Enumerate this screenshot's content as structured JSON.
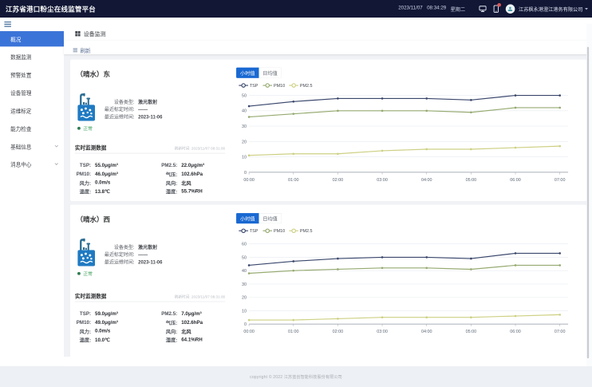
{
  "header": {
    "title": "江苏省港口粉尘在线监管平台",
    "date": "2023/11/07",
    "time": "08:34:29",
    "weekday": "星期二",
    "notification_badge": true,
    "company": "江苏枫永港澄江港务有限公司"
  },
  "sidebar": {
    "items": [
      {
        "key": "overview",
        "label": "概况",
        "active": true,
        "expandable": false
      },
      {
        "key": "data-monitor",
        "label": "数据监测",
        "active": false,
        "expandable": false
      },
      {
        "key": "alert-handle",
        "label": "预警处置",
        "active": false,
        "expandable": false
      },
      {
        "key": "device-mgmt",
        "label": "设备管理",
        "active": false,
        "expandable": false
      },
      {
        "key": "ops-calib",
        "label": "运维标定",
        "active": false,
        "expandable": false
      },
      {
        "key": "ability-check",
        "label": "能力检查",
        "active": false,
        "expandable": false
      },
      {
        "key": "basic-info",
        "label": "基础信息",
        "active": false,
        "expandable": true
      },
      {
        "key": "msg-center",
        "label": "消息中心",
        "active": false,
        "expandable": true
      }
    ]
  },
  "navbar": {
    "breadcrumb": "设备监测"
  },
  "tagbar": {
    "label": "刷新"
  },
  "stations": [
    {
      "name": "（晴水）东",
      "device_type_label": "设备类型:",
      "device_type": "激光散射",
      "calibration_label": "最近标定时间:",
      "calibration_time": "——",
      "maintenance_label": "最近运维时间:",
      "maintenance_time": "2023-11-06",
      "status": "正常",
      "realtime_title": "实时监测数据",
      "refresh_label": "刷新时间: ",
      "refresh_time": "2023/11/07 08:31:00",
      "readings": [
        {
          "label": "TSP:",
          "value": "55.0μg/m³"
        },
        {
          "label": "PM2.5:",
          "value": "22.0μg/m³"
        },
        {
          "label": "PM10:",
          "value": "46.0μg/m³"
        },
        {
          "label": "气压:",
          "value": "102.6hPa"
        },
        {
          "label": "风力:",
          "value": "0.0m/s"
        },
        {
          "label": "风向:",
          "value": "北风"
        },
        {
          "label": "温度:",
          "value": "13.8℃"
        },
        {
          "label": "湿度:",
          "value": "55.7%RH"
        }
      ],
      "tabs": [
        {
          "label": "小时值",
          "active": true
        },
        {
          "label": "日均值",
          "active": false
        }
      ]
    },
    {
      "name": "（晴水）西",
      "device_type_label": "设备类型:",
      "device_type": "激光散射",
      "calibration_label": "最近标定时间:",
      "calibration_time": "——",
      "maintenance_label": "最近运维时间:",
      "maintenance_time": "2023-11-06",
      "status": "正常",
      "realtime_title": "实时监测数据",
      "refresh_label": "刷新时间: ",
      "refresh_time": "2023/11/07 08:31:00",
      "readings": [
        {
          "label": "TSP:",
          "value": "59.0μg/m³"
        },
        {
          "label": "PM2.5:",
          "value": "7.0μg/m³"
        },
        {
          "label": "PM10:",
          "value": "49.0μg/m³"
        },
        {
          "label": "气压:",
          "value": "102.6hPa"
        },
        {
          "label": "风力:",
          "value": "0.0m/s"
        },
        {
          "label": "风向:",
          "value": "北风"
        },
        {
          "label": "温度:",
          "value": "10.0℃"
        },
        {
          "label": "湿度:",
          "value": "64.1%RH"
        }
      ],
      "tabs": [
        {
          "label": "小时值",
          "active": true
        },
        {
          "label": "日均值",
          "active": false
        }
      ]
    }
  ],
  "chart_data": [
    {
      "type": "line",
      "x": [
        "00:00",
        "01:00",
        "02:00",
        "03:00",
        "04:00",
        "05:00",
        "06:00",
        "07:00"
      ],
      "series": [
        {
          "name": "TSP",
          "color": "#39466b",
          "values": [
            43,
            46,
            48,
            48,
            48,
            47,
            50,
            50
          ]
        },
        {
          "name": "PM10",
          "color": "#96aa70",
          "values": [
            36,
            38,
            40,
            40,
            40,
            39,
            42,
            42
          ]
        },
        {
          "name": "PM2.5",
          "color": "#cdd083",
          "values": [
            11,
            12,
            12,
            14,
            15,
            15,
            16,
            17
          ]
        }
      ],
      "ylim": [
        0,
        50
      ],
      "ytick": 10,
      "grid": true,
      "legend_position": "top-left"
    },
    {
      "type": "line",
      "x": [
        "00:00",
        "01:00",
        "02:00",
        "03:00",
        "04:00",
        "05:00",
        "06:00",
        "07:00"
      ],
      "series": [
        {
          "name": "TSP",
          "color": "#39466b",
          "values": [
            44,
            47,
            49,
            50,
            50,
            49,
            53,
            53
          ]
        },
        {
          "name": "PM10",
          "color": "#96aa70",
          "values": [
            38,
            40,
            41,
            42,
            42,
            41,
            44,
            44
          ]
        },
        {
          "name": "PM2.5",
          "color": "#cdd083",
          "values": [
            3,
            3,
            4,
            5,
            5,
            5,
            6,
            7
          ]
        }
      ],
      "ylim": [
        0,
        60
      ],
      "ytick": 10,
      "grid": true,
      "legend_position": "top-left"
    }
  ],
  "footer": {
    "text": "copyright © 2022 江苏蓝创智能科技股份有限公司"
  }
}
